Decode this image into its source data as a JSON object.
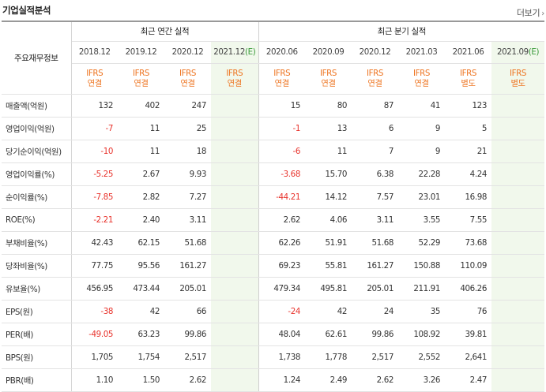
{
  "header": {
    "title": "기업실적분석",
    "more_label": "더보기"
  },
  "table": {
    "row_header_label": "주요재무정보",
    "group_annual_label": "최근 연간 실적",
    "group_quarter_label": "최근 분기 실적",
    "periods": [
      {
        "date": "2018.12",
        "mark": "",
        "std_line1": "IFRS",
        "std_line2": "연결",
        "estimate": false
      },
      {
        "date": "2019.12",
        "mark": "",
        "std_line1": "IFRS",
        "std_line2": "연결",
        "estimate": false
      },
      {
        "date": "2020.12",
        "mark": "",
        "std_line1": "IFRS",
        "std_line2": "연결",
        "estimate": false
      },
      {
        "date": "2021.12",
        "mark": "(E)",
        "std_line1": "IFRS",
        "std_line2": "연결",
        "estimate": true
      },
      {
        "date": "2020.06",
        "mark": "",
        "std_line1": "IFRS",
        "std_line2": "연결",
        "estimate": false
      },
      {
        "date": "2020.09",
        "mark": "",
        "std_line1": "IFRS",
        "std_line2": "연결",
        "estimate": false
      },
      {
        "date": "2020.12",
        "mark": "",
        "std_line1": "IFRS",
        "std_line2": "연결",
        "estimate": false
      },
      {
        "date": "2021.03",
        "mark": "",
        "std_line1": "IFRS",
        "std_line2": "연결",
        "estimate": false
      },
      {
        "date": "2021.06",
        "mark": "",
        "std_line1": "IFRS",
        "std_line2": "별도",
        "estimate": false
      },
      {
        "date": "2021.09",
        "mark": "(E)",
        "std_line1": "IFRS",
        "std_line2": "별도",
        "estimate": true
      }
    ],
    "rows": [
      {
        "label": "매출액(억원)",
        "values": [
          "132",
          "402",
          "247",
          "",
          "15",
          "80",
          "87",
          "41",
          "123",
          ""
        ]
      },
      {
        "label": "영업이익(억원)",
        "values": [
          "-7",
          "11",
          "25",
          "",
          "-1",
          "13",
          "6",
          "9",
          "5",
          ""
        ]
      },
      {
        "label": "당기순이익(억원)",
        "values": [
          "-10",
          "11",
          "18",
          "",
          "-6",
          "11",
          "7",
          "9",
          "21",
          ""
        ]
      },
      {
        "label": "영업이익률(%)",
        "values": [
          "-5.25",
          "2.67",
          "9.93",
          "",
          "-3.68",
          "15.70",
          "6.38",
          "22.28",
          "4.24",
          ""
        ]
      },
      {
        "label": "순이익률(%)",
        "values": [
          "-7.85",
          "2.82",
          "7.27",
          "",
          "-44.21",
          "14.12",
          "7.57",
          "23.01",
          "16.98",
          ""
        ]
      },
      {
        "label": "ROE(%)",
        "values": [
          "-2.21",
          "2.40",
          "3.11",
          "",
          "2.62",
          "4.06",
          "3.11",
          "3.55",
          "7.55",
          ""
        ]
      },
      {
        "label": "부채비율(%)",
        "values": [
          "42.43",
          "62.15",
          "51.68",
          "",
          "62.26",
          "51.91",
          "51.68",
          "52.29",
          "73.68",
          ""
        ]
      },
      {
        "label": "당좌비율(%)",
        "values": [
          "77.75",
          "95.56",
          "161.27",
          "",
          "69.23",
          "55.81",
          "161.27",
          "150.88",
          "110.09",
          ""
        ]
      },
      {
        "label": "유보율(%)",
        "values": [
          "456.95",
          "473.44",
          "205.01",
          "",
          "479.34",
          "495.81",
          "205.01",
          "211.91",
          "406.26",
          ""
        ]
      },
      {
        "label": "EPS(원)",
        "values": [
          "-38",
          "42",
          "66",
          "",
          "-24",
          "42",
          "24",
          "35",
          "76",
          ""
        ]
      },
      {
        "label": "PER(배)",
        "values": [
          "-49.05",
          "63.23",
          "99.86",
          "",
          "48.04",
          "62.61",
          "99.86",
          "108.92",
          "39.81",
          ""
        ]
      },
      {
        "label": "BPS(원)",
        "values": [
          "1,705",
          "1,754",
          "2,517",
          "",
          "1,738",
          "1,778",
          "2,517",
          "2,552",
          "2,641",
          ""
        ]
      },
      {
        "label": "PBR(배)",
        "values": [
          "1.10",
          "1.50",
          "2.62",
          "",
          "1.24",
          "2.49",
          "2.62",
          "3.26",
          "2.47",
          ""
        ]
      }
    ]
  },
  "colors": {
    "negative": "#e8322b",
    "std_label": "#ee7623",
    "estimate_bg": "#f1f8ec",
    "estimate_mark": "#3a9a3a"
  }
}
